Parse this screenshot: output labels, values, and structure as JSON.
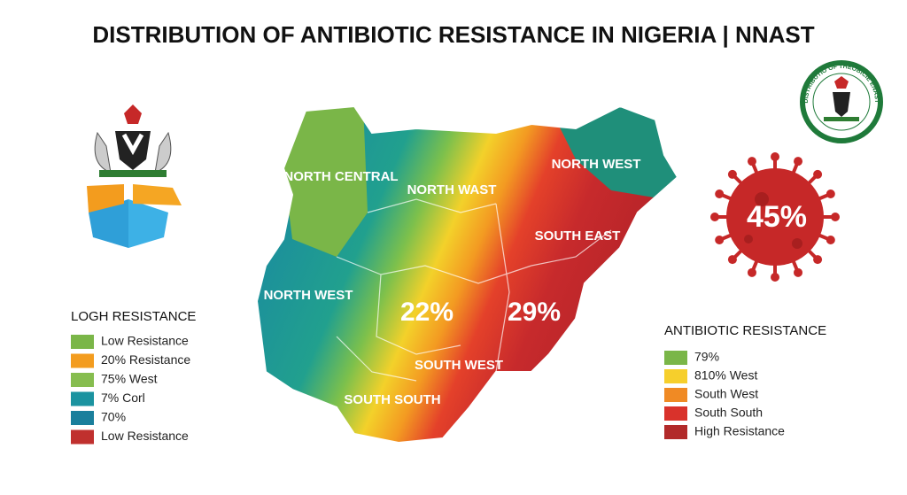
{
  "title": "DISTRIBUTION OF ANTIBIOTIC RESISTANCE IN NIGERIA | NNAST",
  "seal_text": "DISTRIBUTIO OF THEOBICIE ENAST",
  "map": {
    "regions": [
      "NORTH CENTRAL",
      "NORTH WAST",
      "NORTH WEST",
      "SOUTH EAST",
      "NORTH WEST",
      "SOUTH WEST",
      "SOUTH SOUTH"
    ],
    "figures": [
      "22%",
      "29%"
    ]
  },
  "virus_figure": "45%",
  "left_legend": {
    "title": "LOGH RESISTANCE",
    "items": [
      {
        "label": "Low Resistance",
        "color": "#7ab648"
      },
      {
        "label": "20% Resistance",
        "color": "#f39c1e"
      },
      {
        "label": "75% West",
        "color": "#86bd4f"
      },
      {
        "label": "7% Corl",
        "color": "#1b93a0"
      },
      {
        "label": "70%",
        "color": "#1a7f9c"
      },
      {
        "label": "Low Resistance",
        "color": "#c0302e"
      }
    ]
  },
  "right_legend": {
    "title": "ANTIBIOTIC RESISTANCE",
    "items": [
      {
        "label": "79%",
        "color": "#7ab648"
      },
      {
        "label": "810% West",
        "color": "#f6cf2c"
      },
      {
        "label": "South West",
        "color": "#f08a24"
      },
      {
        "label": "South South",
        "color": "#d9322b"
      },
      {
        "label": "High Resistance",
        "color": "#b22a2a"
      }
    ]
  }
}
